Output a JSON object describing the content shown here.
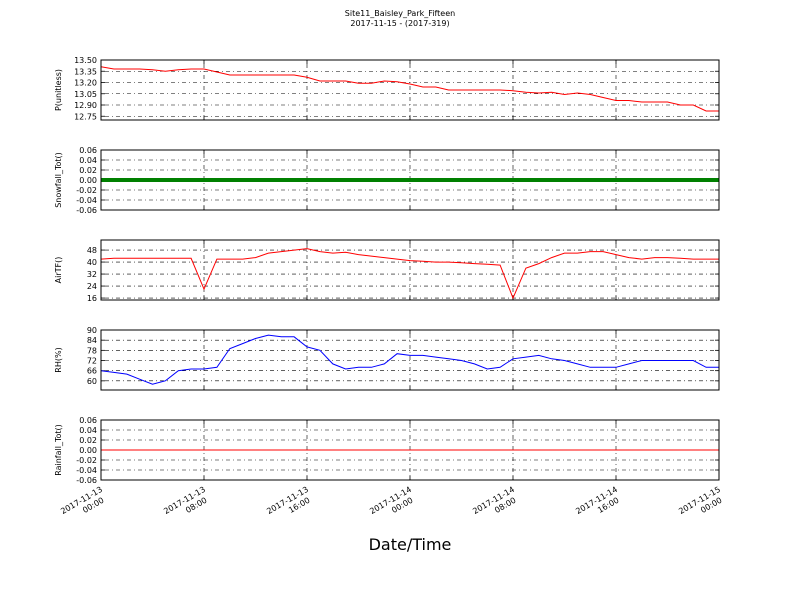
{
  "chart_data": {
    "type": "line",
    "title": "Site11_Baisley_Park_Fifteen",
    "subtitle": "2017-11-15 - (2017-319)",
    "xlabel": "Date/Time",
    "x": [
      "2017-11-13 00:00",
      "2017-11-13 01:00",
      "2017-11-13 02:00",
      "2017-11-13 03:00",
      "2017-11-13 04:00",
      "2017-11-13 05:00",
      "2017-11-13 06:00",
      "2017-11-13 07:00",
      "2017-11-13 08:00",
      "2017-11-13 09:00",
      "2017-11-13 10:00",
      "2017-11-13 11:00",
      "2017-11-13 12:00",
      "2017-11-13 13:00",
      "2017-11-13 14:00",
      "2017-11-13 15:00",
      "2017-11-13 16:00",
      "2017-11-13 17:00",
      "2017-11-13 18:00",
      "2017-11-13 19:00",
      "2017-11-13 20:00",
      "2017-11-13 21:00",
      "2017-11-13 22:00",
      "2017-11-13 23:00",
      "2017-11-14 00:00",
      "2017-11-14 01:00",
      "2017-11-14 02:00",
      "2017-11-14 03:00",
      "2017-11-14 04:00",
      "2017-11-14 05:00",
      "2017-11-14 06:00",
      "2017-11-14 07:00",
      "2017-11-14 08:00",
      "2017-11-14 09:00",
      "2017-11-14 10:00",
      "2017-11-14 11:00",
      "2017-11-14 12:00",
      "2017-11-14 13:00",
      "2017-11-14 14:00",
      "2017-11-14 15:00",
      "2017-11-14 16:00",
      "2017-11-14 17:00",
      "2017-11-14 18:00",
      "2017-11-14 19:00",
      "2017-11-14 20:00",
      "2017-11-14 21:00",
      "2017-11-14 22:00",
      "2017-11-14 23:00",
      "2017-11-15 00:00"
    ],
    "xlim": [
      "2017-11-13 00:00",
      "2017-11-15 00:00"
    ],
    "xticks": [
      {
        "value": "2017-11-13 00:00",
        "label": [
          "2017-11-13",
          "00:00"
        ]
      },
      {
        "value": "2017-11-13 08:00",
        "label": [
          "2017-11-13",
          "08:00"
        ]
      },
      {
        "value": "2017-11-13 16:00",
        "label": [
          "2017-11-13",
          "16:00"
        ]
      },
      {
        "value": "2017-11-14 00:00",
        "label": [
          "2017-11-14",
          "00:00"
        ]
      },
      {
        "value": "2017-11-14 08:00",
        "label": [
          "2017-11-14",
          "08:00"
        ]
      },
      {
        "value": "2017-11-14 16:00",
        "label": [
          "2017-11-14",
          "16:00"
        ]
      },
      {
        "value": "2017-11-15 00:00",
        "label": [
          "2017-11-15",
          "00:00"
        ]
      }
    ],
    "grid": true,
    "panels": [
      {
        "ylabel": "P(unitless)",
        "color": "#ff0000",
        "ylim": [
          12.7,
          13.5
        ],
        "yticks": [
          {
            "value": 12.75,
            "label": "12.75"
          },
          {
            "value": 12.9,
            "label": "12.90"
          },
          {
            "value": 13.05,
            "label": "13.05"
          },
          {
            "value": 13.2,
            "label": "13.20"
          },
          {
            "value": 13.35,
            "label": "13.35"
          },
          {
            "value": 13.5,
            "label": "13.50"
          }
        ],
        "values": [
          13.41,
          13.38,
          13.38,
          13.38,
          13.37,
          13.35,
          13.37,
          13.38,
          13.38,
          13.34,
          13.3,
          13.3,
          13.3,
          13.3,
          13.3,
          13.3,
          13.27,
          13.22,
          13.22,
          13.22,
          13.19,
          13.19,
          13.22,
          13.21,
          13.18,
          13.14,
          13.14,
          13.1,
          13.1,
          13.1,
          13.1,
          13.1,
          13.09,
          13.07,
          13.06,
          13.07,
          13.04,
          13.06,
          13.04,
          13.0,
          12.96,
          12.96,
          12.94,
          12.94,
          12.94,
          12.9,
          12.9,
          12.82,
          12.82
        ]
      },
      {
        "ylabel": "Snowfall_Tot()",
        "color": "#008000",
        "ylim": [
          -0.06,
          0.06
        ],
        "yticks": [
          -0.06,
          -0.04,
          -0.02,
          {
            "value": 0,
            "label": "0.00"
          },
          0.02,
          0.04,
          0.06
        ],
        "values": [
          0,
          0,
          0,
          0,
          0,
          0,
          0,
          0,
          0,
          0,
          0,
          0,
          0,
          0,
          0,
          0,
          0,
          0,
          0,
          0,
          0,
          0,
          0,
          0,
          0,
          0,
          0,
          0,
          0,
          0,
          0,
          0,
          0,
          0,
          0,
          0,
          0,
          0,
          0,
          0,
          0,
          0,
          0,
          0,
          0,
          0,
          0,
          0,
          0
        ]
      },
      {
        "ylabel": "AirTF()",
        "color": "#ff0000",
        "ylim": [
          14.7,
          54.7
        ],
        "yticks": [
          16,
          24,
          32,
          40,
          48
        ],
        "values": [
          42,
          42.5,
          42.5,
          42.5,
          42.5,
          42.5,
          42.5,
          42.5,
          22,
          42,
          42,
          42,
          43,
          46,
          47,
          48,
          49,
          47,
          46,
          46.5,
          45,
          44,
          43,
          42,
          41,
          40.5,
          40,
          40,
          39.5,
          39,
          38.5,
          38,
          16,
          36,
          39,
          43,
          46,
          46,
          47,
          47,
          45,
          43,
          42,
          43,
          43,
          42.5,
          42,
          42,
          42
        ]
      },
      {
        "ylabel": "RH(%)",
        "color": "#0000ff",
        "ylim": [
          54.6,
          90
        ],
        "yticks": [
          60,
          66,
          72,
          78,
          84,
          90
        ],
        "values": [
          66,
          65,
          64,
          61,
          58,
          60,
          66,
          67,
          67,
          68,
          79,
          82,
          85,
          87,
          86,
          86,
          80,
          78,
          70,
          67,
          68,
          68,
          70,
          76,
          75,
          75,
          74,
          73,
          72,
          70,
          67,
          68,
          73,
          74,
          75,
          73,
          72,
          70,
          68,
          68,
          68,
          70,
          72,
          72,
          72,
          72,
          72,
          68,
          68
        ]
      },
      {
        "ylabel": "Rainfall_Tot()",
        "color": "#ff0000",
        "ylim": [
          -0.06,
          0.06
        ],
        "yticks": [
          -0.06,
          -0.04,
          -0.02,
          {
            "value": 0,
            "label": "0.00"
          },
          0.02,
          0.04,
          0.06
        ],
        "values": [
          0,
          0,
          0,
          0,
          0,
          0,
          0,
          0,
          0,
          0,
          0,
          0,
          0,
          0,
          0,
          0,
          0,
          0,
          0,
          0,
          0,
          0,
          0,
          0,
          0,
          0,
          0,
          0,
          0,
          0,
          0,
          0,
          0,
          0,
          0,
          0,
          0,
          0,
          0,
          0,
          0,
          0,
          0,
          0,
          0,
          0,
          0,
          0,
          0
        ]
      }
    ]
  }
}
